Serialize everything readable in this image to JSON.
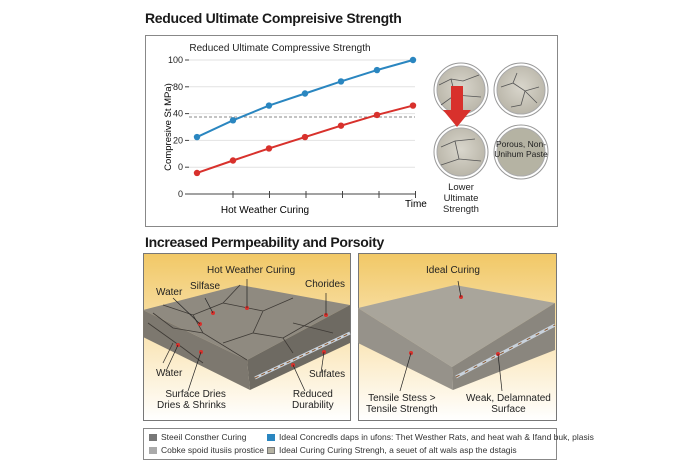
{
  "section1": {
    "title": "Reduced Ultimate Compreisive Strength",
    "chart_data": {
      "type": "line",
      "title": "Reduced Ultimate Compressive Strength",
      "xlabel": "Hot Weather Curing",
      "x_end_label": "Time",
      "ylabel": "Compresive St MPa)",
      "y_tick_labels": [
        "100",
        "80",
        "40",
        "20",
        "0",
        "0"
      ],
      "ylim": [
        0,
        100
      ],
      "x": [
        1,
        2,
        3,
        4,
        5,
        6,
        7
      ],
      "series": [
        {
          "color": "#2a86c0",
          "values": [
            42.5,
            55,
            66,
            75,
            84,
            92.5,
            100
          ]
        },
        {
          "color": "#d8312c",
          "values": [
            15.7,
            25,
            34,
            42.5,
            51,
            59,
            66
          ]
        }
      ],
      "reference_line": {
        "value": 57.5,
        "style": "dashed"
      },
      "grid": true
    },
    "side": {
      "arrow_color": "#d8312c",
      "lower_label": "Lower Ultimate Strength",
      "porous_label": "Porous, Non-Unihum Paste"
    }
  },
  "section2": {
    "title": "Increased Permpeability and Porsoity",
    "left_panel": {
      "labels": {
        "hot": "Hot Weather Curing",
        "silfase": "Silfase",
        "water_top": "Water",
        "chorides": "Chorides",
        "water_side": "Water",
        "surface": "Surface Dries\nDries & Shrinks",
        "sulfates": "Sulfates",
        "reduced": "Reduced\nDurability"
      }
    },
    "right_panel": {
      "labels": {
        "ideal": "Ideal Curing",
        "tensile": "Tensile Stess >\nTensile Strength",
        "weak": "Weak, Delamnated\nSurface"
      }
    }
  },
  "legend": {
    "items": [
      {
        "label": "Steeil Consther Curing",
        "color": "#777777"
      },
      {
        "label": "Cobke spoid itusiis prostice",
        "color": "#aaaaaa"
      },
      {
        "label": "Ideal Concredls daps in ufons: Thet Westher Rats, and heat wah & Ifand buk, plasis",
        "color": "#2a86c0"
      },
      {
        "label": "Ideal Curing Curing Strengh, a seuet of alt wals asp the dstagis",
        "color": "#b5b3a3"
      }
    ]
  }
}
